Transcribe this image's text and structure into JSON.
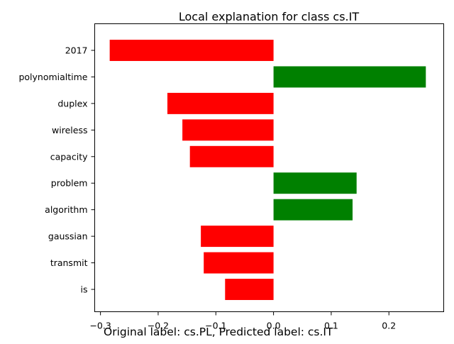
{
  "caption": "Original label: cs.PL, Predicted label: cs.IT",
  "chart_data": {
    "type": "bar",
    "orientation": "horizontal",
    "title": "Local explanation for class cs.IT",
    "xlabel": "",
    "ylabel": "",
    "xlim": [
      -0.31,
      0.295
    ],
    "xticks": [
      -0.3,
      -0.2,
      -0.1,
      0.0,
      0.1,
      0.2
    ],
    "xtick_labels": [
      "−0.3",
      "−0.2",
      "−0.1",
      "0.0",
      "0.1",
      "0.2"
    ],
    "grid": false,
    "categories": [
      "2017",
      "polynomialtime",
      "duplex",
      "wireless",
      "capacity",
      "problem",
      "algorithm",
      "gaussian",
      "transmit",
      "is"
    ],
    "values": [
      -0.284,
      0.264,
      -0.184,
      -0.158,
      -0.145,
      0.144,
      0.137,
      -0.126,
      -0.121,
      -0.084
    ],
    "colors": {
      "positive": "#008000",
      "negative": "#ff0000"
    }
  }
}
